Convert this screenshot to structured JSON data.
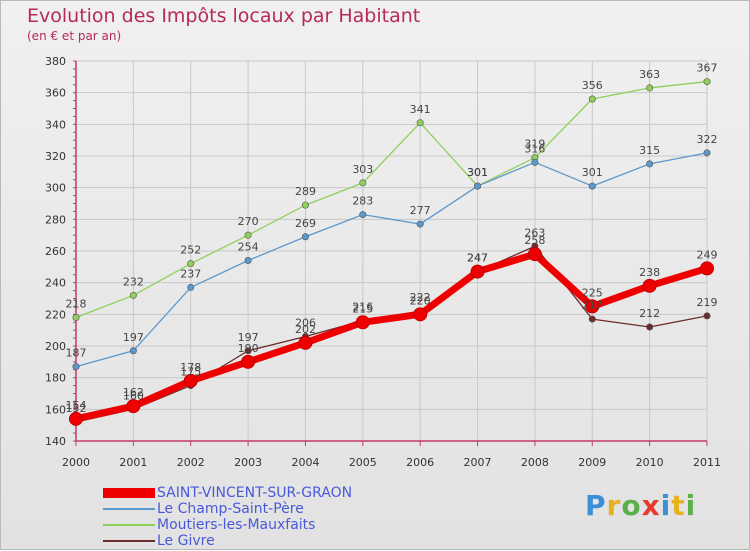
{
  "header": {
    "title": "Evolution des Impôts locaux par Habitant",
    "subtitle": "(en € et par an)"
  },
  "logo": {
    "text": "Proxiti"
  },
  "colors": {
    "title": "#b52a5a",
    "legend_text": "#4a59d9",
    "axis": "#c23b6b",
    "grid": "#c8c8c8"
  },
  "chart_data": {
    "type": "line",
    "x": [
      "2000",
      "2001",
      "2002",
      "2003",
      "2004",
      "2005",
      "2006",
      "2007",
      "2008",
      "2009",
      "2010",
      "2011"
    ],
    "ylim": [
      140,
      380
    ],
    "yticks": [
      140,
      160,
      180,
      200,
      220,
      240,
      260,
      280,
      300,
      320,
      340,
      360,
      380
    ],
    "grid": true,
    "legend_position": "bottom-left",
    "series": [
      {
        "name": "Moutiers-les-Mauxfaits",
        "color": "#8fd05a",
        "values": [
          218,
          232,
          252,
          270,
          289,
          303,
          341,
          301,
          319,
          356,
          363,
          367
        ]
      },
      {
        "name": "Le Champ-Saint-Père",
        "color": "#5b99cc",
        "values": [
          187,
          197,
          237,
          254,
          269,
          283,
          277,
          301,
          316,
          301,
          315,
          322
        ]
      },
      {
        "name": "Le Givre",
        "color": "#6e2b2b",
        "values": [
          152,
          160,
          175,
          197,
          206,
          216,
          222,
          247,
          263,
          217,
          212,
          219
        ]
      },
      {
        "name": "SAINT-VINCENT-SUR-GRAON",
        "color": "#ee0000",
        "values": [
          154,
          162,
          178,
          190,
          202,
          215,
          220,
          247,
          258,
          225,
          238,
          249
        ]
      }
    ],
    "legend_order": [
      "SAINT-VINCENT-SUR-GRAON",
      "Le Champ-Saint-Père",
      "Moutiers-les-Mauxfaits",
      "Le Givre"
    ]
  }
}
